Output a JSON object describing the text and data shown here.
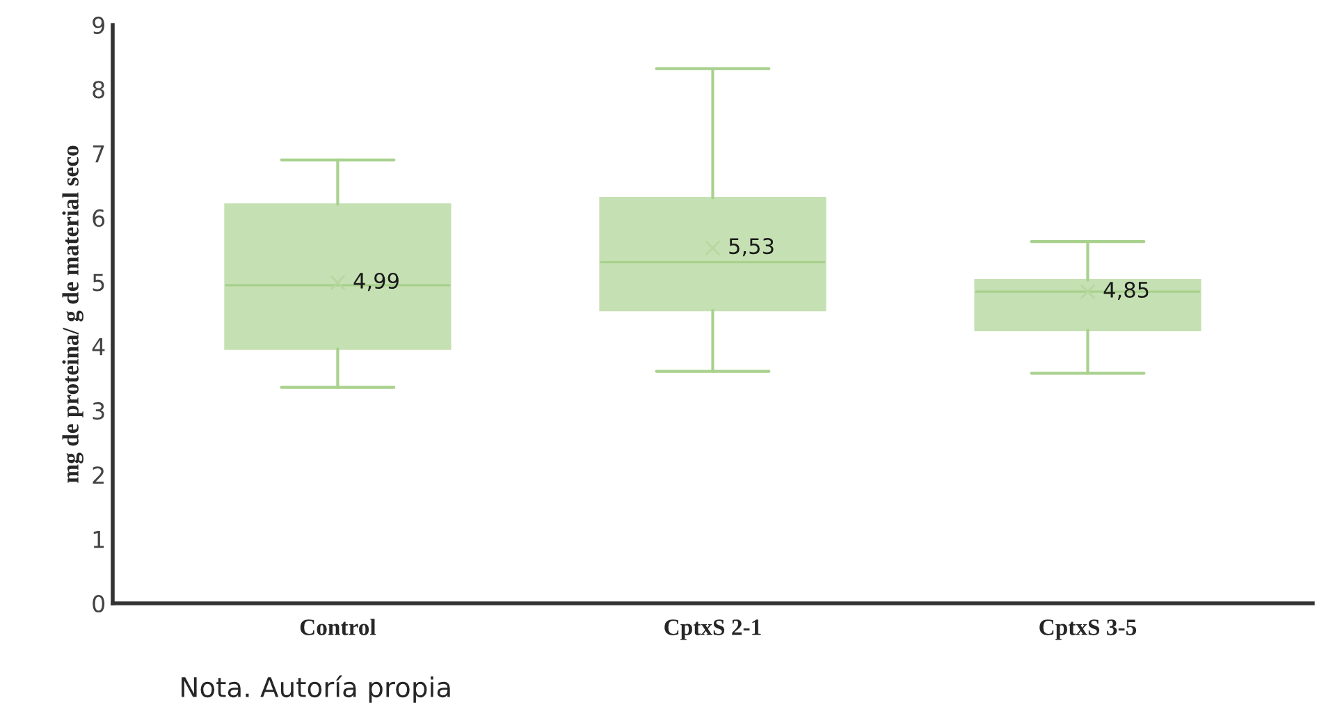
{
  "chart_data": {
    "type": "box",
    "categories": [
      "Control",
      "CptxS 2-1",
      "CptxS 3-5"
    ],
    "ylabel": "mg de proteina/ g de material seco",
    "boxes": [
      {
        "low": 3.36,
        "q1": 3.96,
        "median": 4.95,
        "q3": 6.21,
        "high": 6.9,
        "mean": 4.99
      },
      {
        "low": 3.61,
        "q1": 4.56,
        "median": 5.31,
        "q3": 6.31,
        "high": 8.32,
        "mean": 5.53
      },
      {
        "low": 3.58,
        "q1": 4.25,
        "median": 4.85,
        "q3": 5.03,
        "high": 5.63,
        "mean": 4.85
      }
    ],
    "value_labels": [
      "4,99",
      "5,53",
      "4,85"
    ],
    "color": "#c5e0b3",
    "ylim": [
      0,
      9
    ],
    "yticks": [
      0,
      1,
      2,
      3,
      4,
      5,
      6,
      7,
      8,
      9
    ],
    "grid": false,
    "annotations": [
      "Nota. Autoría propia"
    ]
  }
}
